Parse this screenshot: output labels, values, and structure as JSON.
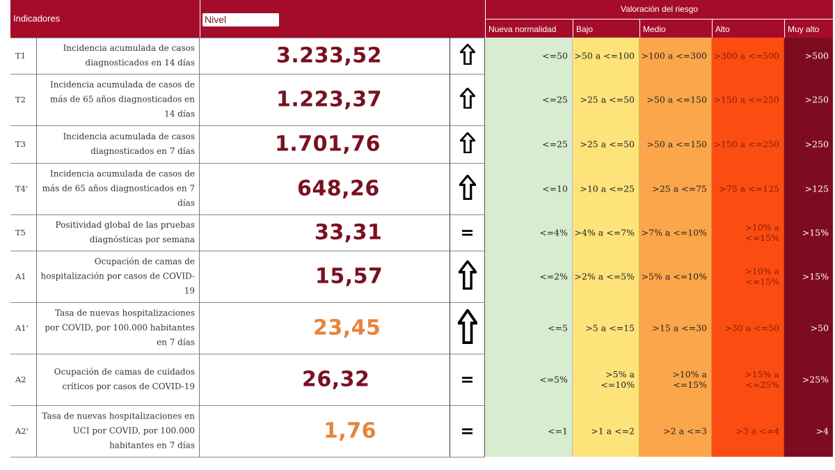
{
  "header": {
    "indicators": "Indicadores",
    "level": "Nivel",
    "risk_title": "Valoración del riesgo",
    "risk_levels": [
      "Nueva normalidad",
      "Bajo",
      "Medio",
      "Alto",
      "Muy alto"
    ]
  },
  "colors": {
    "header_bg": "#a50c2a",
    "value_dark": "#7a1020",
    "value_orange": "#e8833a",
    "nueva_normalidad": "#d8ecd0",
    "bajo": "#fde37a",
    "medio": "#fca64b",
    "alto": "#fb4d12",
    "muy_alto": "#7e0c20"
  },
  "rows": [
    {
      "code": "T1",
      "description": "Incidencia acumulada de casos diagnosticados en 14 días",
      "value": "3.233,52",
      "trend": "up",
      "risk": [
        "<=50",
        ">50 a <=100",
        ">100 a <=300",
        ">300 a <=500",
        ">500"
      ]
    },
    {
      "code": "T2",
      "description": "Incidencia acumulada de casos de más de 65 años diagnosticados en 14 días",
      "value": "1.223,37",
      "trend": "up",
      "risk": [
        "<=25",
        ">25 a <=50",
        ">50 a <=150",
        ">150 a <=250",
        ">250"
      ]
    },
    {
      "code": "T3",
      "description": "Incidencia acumulada de casos diagnosticados en 7 días",
      "value": "1.701,76",
      "trend": "up",
      "risk": [
        "<=25",
        ">25 a <=50",
        ">50 a <=150",
        ">150 a <=250",
        ">250"
      ]
    },
    {
      "code": "T4'",
      "description": "Incidencia acumulada de casos de más de 65 años diagnosticados en 7 días",
      "value": "648,26",
      "trend": "up",
      "risk": [
        "<=10",
        ">10 a <=25",
        ">25 a <=75",
        ">75 a <=125",
        ">125"
      ]
    },
    {
      "code": "T5",
      "description": "Positividad global de las pruebas diagnósticas por semana",
      "value": "33,31",
      "trend": "equal",
      "risk": [
        "<=4%",
        ">4% a <=7%",
        ">7% a <=10%",
        ">10% a <=15%",
        ">15%"
      ]
    },
    {
      "code": "A1",
      "description": "Ocupación de camas de hospitalización por casos de COVID-19",
      "value": "15,57",
      "trend": "up",
      "risk": [
        "<=2%",
        ">2% a <=5%",
        ">5% a <=10%",
        ">10% a <=15%",
        ">15%"
      ]
    },
    {
      "code": "A1'",
      "description": "Tasa de nuevas hospitalizaciones por COVID, por 100.000 habitantes en 7 días",
      "value": "23,45",
      "trend": "up",
      "risk": [
        "<=5",
        ">5 a <=15",
        ">15 a <=30",
        ">30 a <=50",
        ">50"
      ]
    },
    {
      "code": "A2",
      "description": "Ocupación de camas de cuidados críticos por casos de COVID-19",
      "value": "26,32",
      "trend": "equal",
      "risk": [
        "<=5%",
        ">5% a <=10%",
        ">10% a <=15%",
        ">15% a <=25%",
        ">25%"
      ]
    },
    {
      "code": "A2'",
      "description": "Tasa de nuevas hospitalizaciones en UCI por COVID, por 100.000 habitantes en 7 días",
      "value": "1,76",
      "trend": "equal",
      "risk": [
        "<=1",
        ">1 a <=2",
        ">2 a <=3",
        ">3 a <=4",
        ">4"
      ]
    }
  ]
}
